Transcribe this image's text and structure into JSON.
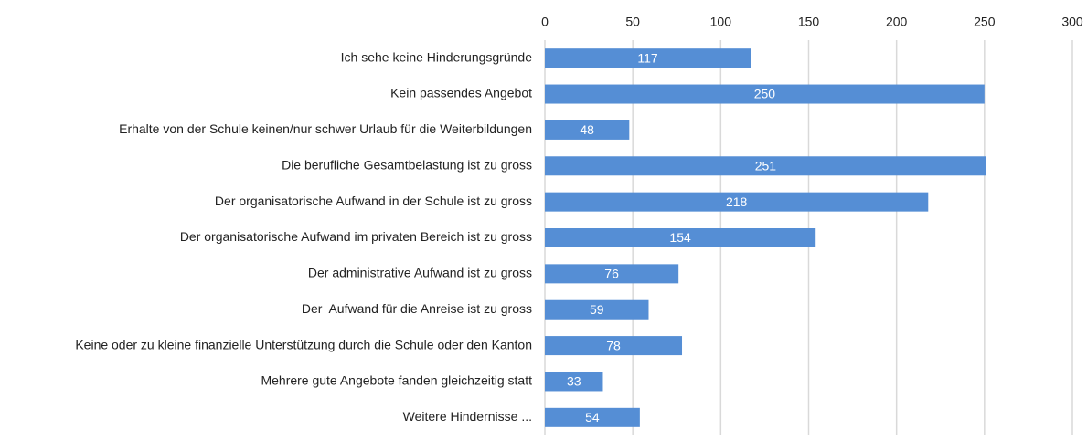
{
  "chart_data": {
    "type": "bar",
    "orientation": "horizontal",
    "categories": [
      "Ich sehe keine Hinderungsgründe",
      "Kein passendes Angebot",
      "Erhalte von der Schule keinen/nur schwer Urlaub für die Weiterbildungen",
      "Die berufliche Gesamtbelastung ist zu gross",
      "Der organisatorische Aufwand in der Schule ist zu gross",
      "Der organisatorische Aufwand im privaten Bereich ist zu gross",
      "Der administrative Aufwand ist zu gross",
      "Der  Aufwand für die Anreise ist zu gross",
      "Keine oder zu kleine finanzielle Unterstützung durch die Schule oder den Kanton",
      "Mehrere gute Angebote fanden gleichzeitig statt",
      "Weitere Hindernisse ..."
    ],
    "values": [
      117,
      250,
      48,
      251,
      218,
      154,
      76,
      59,
      78,
      33,
      54
    ],
    "color": "#558ed5",
    "xlim": [
      0,
      300
    ],
    "xticks": [
      0,
      50,
      100,
      150,
      200,
      250,
      300
    ],
    "grid": true,
    "data_labels": true
  }
}
